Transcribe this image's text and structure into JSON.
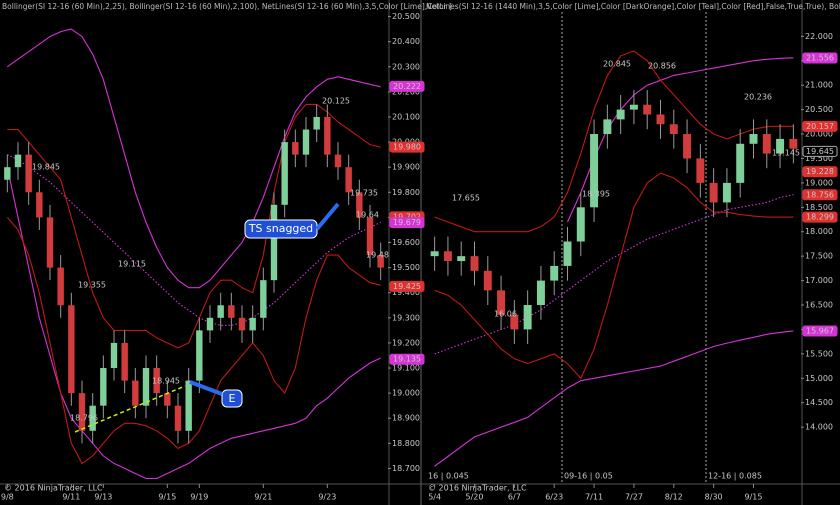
{
  "chart_data": [
    {
      "type": "candlestick",
      "title": "Bollinger(SI 12-16 (60 Min),2,25), Bollinger(SI 12-16 (60 Min),2,100), NetLines(SI 12-16 (60 Min),3,5,Color [Lime],Color [",
      "footer": "© 2016 NinjaTrader, LLC",
      "categories": [
        "9/8",
        null,
        null,
        null,
        null,
        null,
        "9/11",
        null,
        null,
        "9/13",
        null,
        null,
        null,
        null,
        null,
        "9/15",
        null,
        null,
        "9/19",
        null,
        null,
        null,
        null,
        null,
        "9/21",
        null,
        null,
        null,
        null,
        null,
        "9/23",
        null,
        null,
        null,
        null,
        null
      ],
      "open": [
        19.85,
        19.9,
        19.95,
        19.8,
        19.7,
        19.5,
        19.35,
        19.0,
        18.85,
        18.95,
        19.1,
        19.2,
        19.05,
        18.95,
        19.1,
        19.0,
        18.95,
        18.85,
        19.05,
        19.25,
        19.3,
        19.35,
        19.3,
        19.25,
        19.3,
        19.45,
        19.75,
        20.0,
        19.95,
        20.05,
        20.1,
        19.95,
        19.9,
        19.8,
        19.7,
        19.55
      ],
      "high": [
        19.95,
        20.0,
        20.0,
        19.85,
        19.75,
        19.55,
        19.4,
        19.05,
        19.0,
        19.15,
        19.25,
        19.25,
        19.1,
        19.15,
        19.15,
        19.05,
        19.0,
        19.1,
        19.3,
        19.35,
        19.4,
        19.4,
        19.35,
        19.35,
        19.5,
        19.8,
        20.05,
        20.05,
        20.1,
        20.15,
        20.15,
        20.0,
        19.95,
        19.85,
        19.75,
        19.6
      ],
      "low": [
        19.8,
        19.85,
        19.75,
        19.65,
        19.45,
        19.3,
        18.95,
        18.8,
        18.8,
        18.9,
        19.05,
        19.0,
        18.9,
        18.9,
        18.95,
        18.9,
        18.8,
        18.8,
        19.0,
        19.2,
        19.25,
        19.25,
        19.2,
        19.2,
        19.25,
        19.4,
        19.7,
        19.9,
        19.9,
        20.0,
        19.9,
        19.85,
        19.75,
        19.65,
        19.5,
        19.45
      ],
      "close": [
        19.9,
        19.95,
        19.8,
        19.7,
        19.5,
        19.35,
        19.0,
        18.85,
        18.95,
        19.1,
        19.2,
        19.05,
        18.95,
        19.1,
        19.0,
        18.95,
        18.85,
        19.05,
        19.25,
        19.3,
        19.35,
        19.3,
        19.25,
        19.3,
        19.45,
        19.75,
        20.0,
        19.95,
        20.05,
        20.1,
        19.95,
        19.9,
        19.8,
        19.7,
        19.55,
        19.5
      ],
      "up_color": "#7ecf9a",
      "down_color": "#d23c3c",
      "series": [
        {
          "color": "#d633d6",
          "dashed": false,
          "values": [
            20.3,
            20.33,
            20.36,
            20.39,
            20.42,
            20.44,
            20.45,
            20.42,
            20.35,
            20.25,
            20.1,
            19.95,
            19.8,
            19.68,
            19.58,
            19.5,
            19.45,
            19.42,
            19.42,
            19.45,
            19.5,
            19.55,
            19.6,
            19.68,
            19.78,
            19.9,
            20.02,
            20.12,
            20.18,
            20.22,
            20.25,
            20.26,
            20.25,
            20.24,
            20.23,
            20.22
          ]
        },
        {
          "color": "#d633d6",
          "dashed": false,
          "values": [
            19.9,
            19.7,
            19.5,
            19.3,
            19.15,
            19.0,
            18.9,
            18.85,
            18.8,
            18.75,
            18.72,
            18.7,
            18.68,
            18.66,
            18.66,
            18.68,
            18.7,
            18.72,
            18.75,
            18.78,
            18.8,
            18.82,
            18.83,
            18.84,
            18.85,
            18.86,
            18.87,
            18.88,
            18.9,
            18.95,
            18.98,
            19.02,
            19.06,
            19.09,
            19.12,
            19.14
          ]
        },
        {
          "color": "#d633d6",
          "dashed": true,
          "values": [
            19.95,
            19.93,
            19.9,
            19.87,
            19.84,
            19.8,
            19.76,
            19.72,
            19.68,
            19.64,
            19.6,
            19.56,
            19.52,
            19.48,
            19.44,
            19.4,
            19.36,
            19.33,
            19.3,
            19.28,
            19.27,
            19.27,
            19.28,
            19.3,
            19.33,
            19.36,
            19.4,
            19.44,
            19.48,
            19.52,
            19.56,
            19.59,
            19.62,
            19.64,
            19.66,
            19.68
          ]
        },
        {
          "color": "#c01818",
          "dashed": false,
          "values": [
            20.05,
            20.05,
            20.0,
            19.95,
            19.9,
            19.85,
            19.7,
            19.55,
            19.4,
            19.3,
            19.25,
            19.25,
            19.25,
            19.25,
            19.22,
            19.2,
            19.18,
            19.2,
            19.3,
            19.4,
            19.45,
            19.45,
            19.42,
            19.4,
            19.55,
            19.8,
            20.0,
            20.1,
            20.15,
            20.15,
            20.12,
            20.08,
            20.05,
            20.02,
            19.99,
            19.98
          ]
        },
        {
          "color": "#c01818",
          "dashed": false,
          "values": [
            19.7,
            19.65,
            19.55,
            19.4,
            19.2,
            19.0,
            18.8,
            18.72,
            18.75,
            18.8,
            18.85,
            18.88,
            18.88,
            18.87,
            18.85,
            18.82,
            18.78,
            18.8,
            18.85,
            18.95,
            19.05,
            19.1,
            19.15,
            19.2,
            19.15,
            19.05,
            19.0,
            19.1,
            19.3,
            19.45,
            19.55,
            19.55,
            19.5,
            19.47,
            19.44,
            19.43
          ]
        }
      ],
      "ylim": [
        18.65,
        20.55
      ],
      "yticks": [
        {
          "value": 18.7,
          "label": "18.700"
        },
        {
          "value": 18.8,
          "label": "18.800"
        },
        {
          "value": 18.9,
          "label": "18.900"
        },
        {
          "value": 19.0,
          "label": "19.000"
        },
        {
          "value": 19.1,
          "label": "19.100"
        },
        {
          "value": 19.2,
          "label": "19.200"
        },
        {
          "value": 19.3,
          "label": "19.300"
        },
        {
          "value": 19.4,
          "label": "19.400"
        },
        {
          "value": 19.5,
          "label": "19.500"
        },
        {
          "value": 19.6,
          "label": "19.600"
        },
        {
          "value": 19.7,
          "label": "19.700"
        },
        {
          "value": 19.8,
          "label": "19.800"
        },
        {
          "value": 19.9,
          "label": "19.900"
        },
        {
          "value": 20.0,
          "label": "20.000"
        },
        {
          "value": 20.1,
          "label": "20.100"
        },
        {
          "value": 20.2,
          "label": "20.200"
        },
        {
          "value": 20.3,
          "label": "20.300"
        },
        {
          "value": 20.4,
          "label": "20.400"
        },
        {
          "value": 20.5,
          "label": "20.500"
        }
      ],
      "badges": [
        {
          "value": 20.222,
          "label": "20.222",
          "color": "#d633d6"
        },
        {
          "value": 19.98,
          "label": "19.980",
          "color": "#e03030"
        },
        {
          "value": 19.702,
          "label": "19.702",
          "color": "#e03030"
        },
        {
          "value": 19.679,
          "label": "19.679",
          "color": "#d633d6"
        },
        {
          "value": 19.425,
          "label": "19.425",
          "color": "#e03030"
        },
        {
          "value": 19.135,
          "label": "19.135",
          "color": "#d633d6"
        }
      ],
      "labels": [
        "19.64",
        "19.48",
        "19.845",
        "20.125",
        "19.735",
        "19.355",
        "19.115",
        "18.945",
        "18.796"
      ],
      "label_colors": [
        "#7cfc00",
        "#ff8c00",
        "#2ab0b0",
        "#2ab0b0",
        "#e03030",
        "#2ab0b0",
        "#2ab0b0",
        "#e03030",
        "#e03030"
      ],
      "annotations": [
        "TS snagged",
        "E"
      ]
    },
    {
      "type": "candlestick",
      "title": "NetLines(SI 12-16 (1440 Min),3,5,Color [Lime],Color [DarkOrange],Color [Teal],Color [Red],False,True,True), Bollin",
      "footer": "© 2016 NinjaTrader, LLC",
      "categories": [
        "5/4",
        null,
        null,
        "5/20",
        null,
        null,
        "6/7",
        null,
        null,
        "6/23",
        null,
        null,
        "7/11",
        null,
        null,
        "7/27",
        null,
        null,
        "8/12",
        null,
        null,
        "8/30",
        null,
        null,
        "9/15",
        null,
        null,
        null
      ],
      "open": [
        17.5,
        17.6,
        17.4,
        17.5,
        17.2,
        16.8,
        16.3,
        16.0,
        16.5,
        17.0,
        17.3,
        17.8,
        18.5,
        20.0,
        20.3,
        20.5,
        20.6,
        20.4,
        20.2,
        20.0,
        19.5,
        19.0,
        18.6,
        19.0,
        19.8,
        20.0,
        19.6,
        19.9
      ],
      "high": [
        17.9,
        17.9,
        17.8,
        17.8,
        17.5,
        17.1,
        16.6,
        16.8,
        17.3,
        17.6,
        18.1,
        18.8,
        20.3,
        20.6,
        20.8,
        20.9,
        20.9,
        20.7,
        20.5,
        20.3,
        19.8,
        19.3,
        19.3,
        20.1,
        20.3,
        20.3,
        20.2,
        20.2
      ],
      "low": [
        17.2,
        17.1,
        17.1,
        16.9,
        16.5,
        16.0,
        15.7,
        15.7,
        16.2,
        16.7,
        17.0,
        17.5,
        18.2,
        19.7,
        20.0,
        20.2,
        20.1,
        19.9,
        19.7,
        19.2,
        18.7,
        18.3,
        18.3,
        18.7,
        19.5,
        19.3,
        19.3,
        19.4
      ],
      "close": [
        17.6,
        17.4,
        17.5,
        17.2,
        16.8,
        16.3,
        16.0,
        16.5,
        17.0,
        17.3,
        17.8,
        18.5,
        20.0,
        20.3,
        20.5,
        20.6,
        20.4,
        20.2,
        20.0,
        19.5,
        19.0,
        18.6,
        19.0,
        19.8,
        20.0,
        19.6,
        19.9,
        19.7
      ],
      "up_color": "#7ecf9a",
      "down_color": "#d23c3c",
      "series": [
        {
          "color": "#d633d6",
          "dashed": false,
          "values": [
            null,
            null,
            null,
            null,
            null,
            null,
            null,
            null,
            null,
            null,
            18.2,
            18.8,
            19.5,
            20.1,
            20.5,
            20.8,
            21.0,
            21.1,
            21.2,
            21.25,
            21.3,
            21.35,
            21.4,
            21.45,
            21.5,
            21.53,
            21.55,
            21.56
          ]
        },
        {
          "color": "#d633d6",
          "dashed": false,
          "values": [
            13.2,
            13.4,
            13.6,
            13.8,
            13.9,
            14.0,
            14.1,
            14.2,
            14.4,
            14.6,
            14.8,
            14.95,
            15.0,
            15.05,
            15.1,
            15.15,
            15.2,
            15.25,
            15.35,
            15.45,
            15.55,
            15.65,
            15.72,
            15.78,
            15.84,
            15.9,
            15.94,
            15.97
          ]
        },
        {
          "color": "#d633d6",
          "dashed": true,
          "values": [
            15.5,
            15.6,
            15.7,
            15.8,
            15.9,
            16.0,
            16.1,
            16.25,
            16.4,
            16.6,
            16.8,
            17.0,
            17.2,
            17.4,
            17.55,
            17.7,
            17.85,
            17.95,
            18.05,
            18.15,
            18.25,
            18.35,
            18.45,
            18.5,
            18.55,
            18.6,
            18.7,
            18.76
          ]
        },
        {
          "color": "#c01818",
          "dashed": false,
          "values": [
            18.3,
            18.2,
            18.1,
            18.0,
            18.0,
            18.0,
            18.0,
            18.0,
            18.1,
            18.3,
            18.8,
            19.6,
            20.5,
            21.2,
            21.6,
            21.7,
            21.5,
            21.1,
            20.8,
            20.5,
            20.2,
            20.0,
            19.9,
            20.0,
            20.1,
            20.15,
            20.16,
            20.157
          ]
        },
        {
          "color": "#c01818",
          "dashed": false,
          "values": [
            16.8,
            16.7,
            16.5,
            16.2,
            15.9,
            15.6,
            15.4,
            15.3,
            15.4,
            15.5,
            15.3,
            15.0,
            15.6,
            16.5,
            17.5,
            18.5,
            19.0,
            19.2,
            19.1,
            18.9,
            18.6,
            18.4,
            18.4,
            18.35,
            18.32,
            18.3,
            18.3,
            18.299
          ]
        }
      ],
      "ylim": [
        13.0,
        22.6
      ],
      "yticks": [
        {
          "value": 14,
          "label": "14.000"
        },
        {
          "value": 14.5,
          "label": "14.500"
        },
        {
          "value": 15,
          "label": "15.000"
        },
        {
          "value": 15.5,
          "label": "15.500"
        },
        {
          "value": 16,
          "label": "16.000"
        },
        {
          "value": 16.5,
          "label": "16.500"
        },
        {
          "value": 17,
          "label": "17.000"
        },
        {
          "value": 17.5,
          "label": "17.500"
        },
        {
          "value": 18,
          "label": "18.000"
        },
        {
          "value": 18.5,
          "label": "18.500"
        },
        {
          "value": 19,
          "label": "19.000"
        },
        {
          "value": 19.5,
          "label": "19.500"
        },
        {
          "value": 20,
          "label": "20.000"
        },
        {
          "value": 20.5,
          "label": "20.500"
        },
        {
          "value": 21,
          "label": "21.000"
        },
        {
          "value": 21.5,
          "label": "21.500"
        },
        {
          "value": 22,
          "label": "22.000"
        }
      ],
      "badges": [
        {
          "value": 21.556,
          "label": "21.556",
          "color": "#d633d6"
        },
        {
          "value": 20.157,
          "label": "20.157",
          "color": "#e03030"
        },
        {
          "value": 19.645,
          "label": "19.645",
          "color": "#000"
        },
        {
          "value": 19.228,
          "label": "19.228",
          "color": "#e03030"
        },
        {
          "value": 18.756,
          "label": "18.756",
          "color": "#e03030"
        },
        {
          "value": 18.299,
          "label": "18.299",
          "color": "#e03030"
        },
        {
          "value": 15.967,
          "label": "15.967",
          "color": "#d633d6"
        }
      ],
      "labels": [
        "20.845",
        "20.856",
        "20.236",
        "19.145",
        "16.06",
        "18.395",
        "17.655"
      ],
      "label_colors": [
        "#2ab0b0",
        "#2ab0b0",
        "#2ab0b0",
        "#ff8c00",
        "#e03030",
        "#e03030",
        "#2ab0b0"
      ],
      "contracts": [
        "16 | 0.045",
        "09-16 | 0.05",
        "12-16 | 0.085"
      ]
    }
  ]
}
